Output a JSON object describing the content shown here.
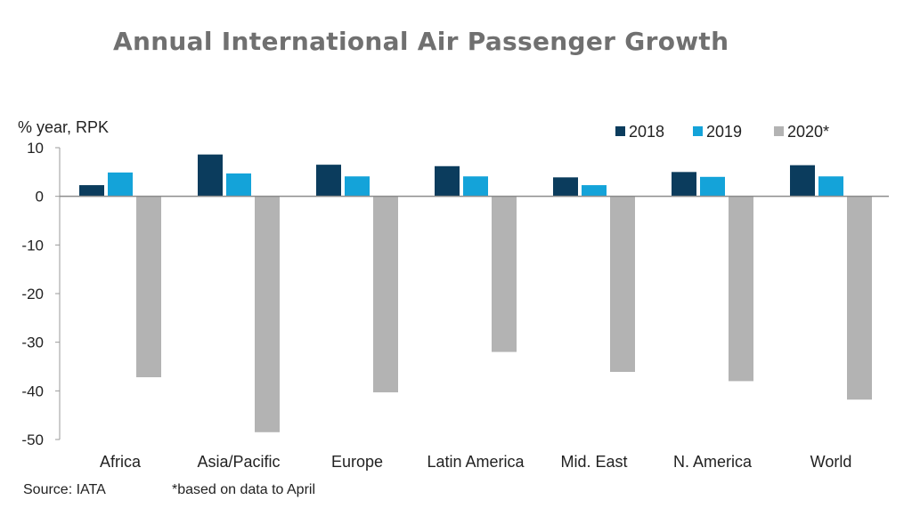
{
  "chart_data": {
    "type": "bar",
    "title": "Annual International Air Passenger Growth",
    "ylabel": "% year, RPK",
    "xlabel": "",
    "ylim": [
      -50,
      10
    ],
    "yticks": [
      10,
      0,
      -10,
      -20,
      -30,
      -40,
      -50
    ],
    "categories": [
      "Africa",
      "Asia/Pacific",
      "Europe",
      "Latin America",
      "Mid. East",
      "N. America",
      "World"
    ],
    "series": [
      {
        "name": "2018",
        "color": "#0b3c5d",
        "values": [
          2.3,
          8.6,
          6.5,
          6.2,
          3.9,
          5.0,
          6.4
        ]
      },
      {
        "name": "2019",
        "color": "#14a3d9",
        "values": [
          4.9,
          4.7,
          4.1,
          4.1,
          2.3,
          4.0,
          4.1
        ]
      },
      {
        "name": "2020*",
        "color": "#b3b3b3",
        "values": [
          -37.2,
          -48.5,
          -40.3,
          -32.0,
          -36.1,
          -38.0,
          -41.8
        ]
      }
    ],
    "legend_position": "top-right",
    "source": "Source: IATA",
    "footnote": "*based on data to April"
  }
}
